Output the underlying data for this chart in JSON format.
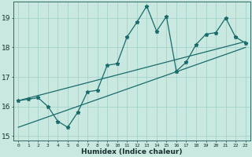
{
  "xlabel": "Humidex (Indice chaleur)",
  "background_color": "#c8e8e0",
  "line_color": "#1a6b6b",
  "grid_color": "#9ecfc8",
  "x_data": [
    0,
    1,
    2,
    3,
    4,
    5,
    6,
    7,
    8,
    9,
    10,
    11,
    12,
    13,
    14,
    15,
    16,
    17,
    18,
    19,
    20,
    21,
    22,
    23
  ],
  "y_data": [
    16.2,
    16.25,
    16.3,
    16.0,
    15.5,
    15.3,
    15.8,
    16.5,
    16.55,
    17.4,
    17.45,
    18.35,
    18.85,
    19.4,
    18.55,
    19.05,
    17.2,
    17.5,
    18.1,
    18.45,
    18.5,
    19.0,
    18.35,
    18.15
  ],
  "trend_x1_start": 0,
  "trend_x1_end": 23,
  "trend_y1_start": 16.2,
  "trend_y1_end": 18.2,
  "trend_y2_start": 15.3,
  "trend_y2_end": 18.0,
  "ylim_min": 14.85,
  "ylim_max": 19.55,
  "xlim_min": -0.5,
  "xlim_max": 23.5,
  "ytick_vals": [
    15,
    16,
    17,
    18,
    19
  ],
  "xtick_labels": [
    "0",
    "1",
    "2",
    "3",
    "4",
    "5",
    "6",
    "7",
    "8",
    "9",
    "10",
    "11",
    "12",
    "13",
    "14",
    "15",
    "16",
    "17",
    "18",
    "19",
    "20",
    "21",
    "22",
    "23"
  ]
}
